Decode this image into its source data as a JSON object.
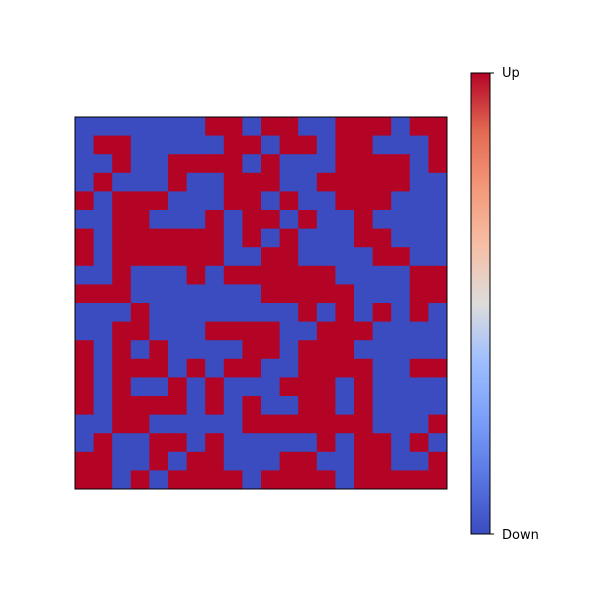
{
  "chart_data": {
    "type": "heatmap",
    "title": "",
    "xlabel": "",
    "ylabel": "",
    "rows": 20,
    "cols": 20,
    "values": [
      "00000001101100111011",
      "01100000110110110001",
      "00100111101000111101",
      "01000100111001111100",
      "10111000110100111000",
      "00110001011010010000",
      "10111111010100011000",
      "10111111001100001100",
      "00100010111111000011",
      "11100000001111100011",
      "00010000000010101010",
      "00110001111001110000",
      "10101000011011100000",
      "10111010110011110011",
      "10100101000111010000",
      "10111101010011010000",
      "00110000011111110001",
      "01001101000001011010",
      "11001011000110011001",
      "11010111101111011111"
    ],
    "colormap": "coolwarm",
    "colors": {
      "down": "#3b4cc0",
      "up": "#b40426"
    },
    "colorbar": {
      "labels": [
        "Up",
        "Down"
      ],
      "range": [
        0,
        1
      ]
    },
    "grid": false,
    "axes_visible": false
  }
}
